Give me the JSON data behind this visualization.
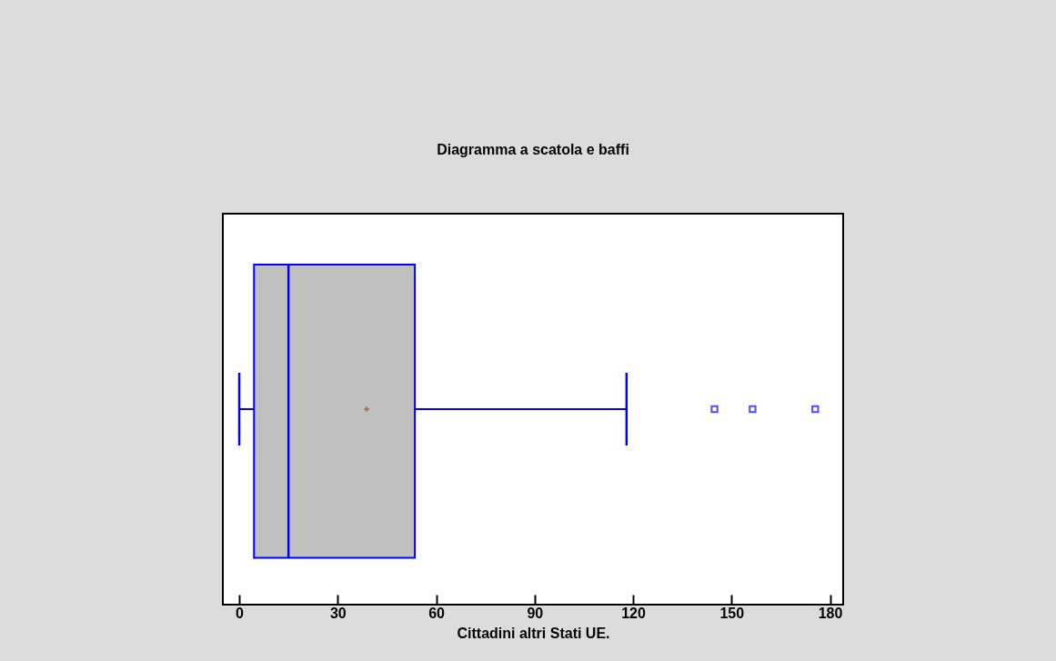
{
  "chart_data": {
    "type": "box",
    "title": "Diagramma a scatola e baffi",
    "xlabel": "Cittadini altri Stati UE.",
    "orientation": "horizontal",
    "categories": [
      null
    ],
    "tick_labels": "x",
    "series": [
      {
        "color": "#0000ff",
        "boxes": [
          {
            "low": 0,
            "q1": 4.5,
            "median": 15,
            "q3": 53.5,
            "high": 118,
            "mean": 38.8,
            "outliers": [
              144.8,
              156.4,
              175.5
            ]
          }
        ]
      }
    ],
    "xlim": [
      -5,
      184
    ],
    "xticks": [
      0,
      30,
      60,
      90,
      120,
      150,
      180
    ]
  }
}
